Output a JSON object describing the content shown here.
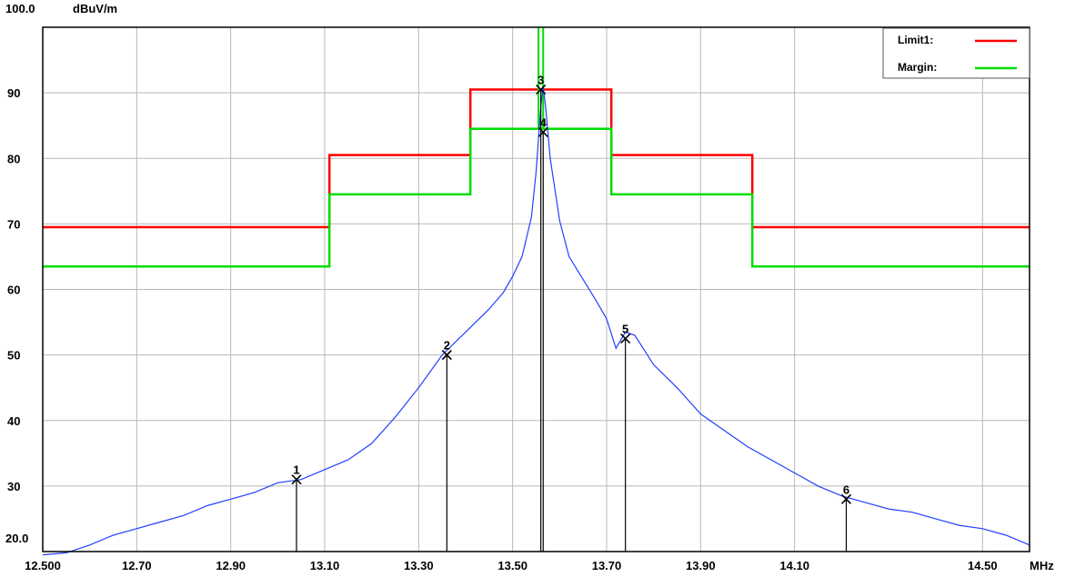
{
  "chart_data": {
    "type": "line",
    "ylabel": "dBuV/m",
    "xlabel": "MHz",
    "ylim": [
      20,
      100
    ],
    "xlim": [
      12.5,
      14.6
    ],
    "y_top_label": "100.0",
    "y_bottom_label": "20.0",
    "y_ticks": [
      30,
      40,
      50,
      60,
      70,
      80,
      90
    ],
    "x_ticks": [
      {
        "value": 12.5,
        "label": "12.500"
      },
      {
        "value": 12.7,
        "label": "12.70"
      },
      {
        "value": 12.9,
        "label": "12.90"
      },
      {
        "value": 13.1,
        "label": "13.10"
      },
      {
        "value": 13.3,
        "label": "13.30"
      },
      {
        "value": 13.5,
        "label": "13.50"
      },
      {
        "value": 13.7,
        "label": "13.70"
      },
      {
        "value": 13.9,
        "label": "13.90"
      },
      {
        "value": 14.1,
        "label": "14.10"
      },
      {
        "value": 14.5,
        "label": "14.50"
      }
    ],
    "grid": true,
    "legend_position": "top-right",
    "legend": [
      {
        "label": "Limit1:",
        "color": "#ff0000"
      },
      {
        "label": "Margin:",
        "color": "#00dd00"
      }
    ],
    "limit": {
      "color": "#ff0000",
      "segments": [
        {
          "x0": 12.5,
          "x1": 13.11,
          "y": 69.5
        },
        {
          "x0": 13.11,
          "x1": 13.41,
          "y": 80.5
        },
        {
          "x0": 13.41,
          "x1": 13.71,
          "y": 90.5
        },
        {
          "x0": 13.71,
          "x1": 14.01,
          "y": 80.5
        },
        {
          "x0": 14.01,
          "x1": 14.6,
          "y": 69.5
        }
      ]
    },
    "margin": {
      "color": "#00dd00",
      "segments": [
        {
          "x0": 12.5,
          "x1": 13.11,
          "y": 63.5
        },
        {
          "x0": 13.11,
          "x1": 13.41,
          "y": 74.5
        },
        {
          "x0": 13.41,
          "x1": 13.71,
          "y": 84.5
        },
        {
          "x0": 13.71,
          "x1": 14.01,
          "y": 74.5
        },
        {
          "x0": 14.01,
          "x1": 14.6,
          "y": 63.5
        }
      ],
      "spikes": [
        13.555,
        13.565
      ]
    },
    "series": [
      {
        "color": "#2040ff",
        "x": [
          12.5,
          12.55,
          12.6,
          12.65,
          12.7,
          12.75,
          12.8,
          12.85,
          12.9,
          12.95,
          13.0,
          13.05,
          13.1,
          13.15,
          13.2,
          13.25,
          13.3,
          13.35,
          13.4,
          13.45,
          13.48,
          13.5,
          13.52,
          13.54,
          13.55,
          13.56,
          13.565,
          13.57,
          13.58,
          13.6,
          13.62,
          13.65,
          13.68,
          13.7,
          13.72,
          13.74,
          13.76,
          13.8,
          13.85,
          13.9,
          13.95,
          14.0,
          14.05,
          14.1,
          14.15,
          14.2,
          14.25,
          14.3,
          14.35,
          14.4,
          14.45,
          14.5,
          14.55,
          14.6
        ],
        "y": [
          19.5,
          19.8,
          21.0,
          22.5,
          23.5,
          24.5,
          25.5,
          27.0,
          28.0,
          29.0,
          30.5,
          31.0,
          32.5,
          34.0,
          36.5,
          40.5,
          45.0,
          50.0,
          53.5,
          57.0,
          59.5,
          62.0,
          65.0,
          71.0,
          78.0,
          88.0,
          91.0,
          88.0,
          80.0,
          70.5,
          65.0,
          61.5,
          58.0,
          55.5,
          51.0,
          53.5,
          53.0,
          48.5,
          45.0,
          41.0,
          38.5,
          36.0,
          34.0,
          32.0,
          30.0,
          28.5,
          27.5,
          26.5,
          26.0,
          25.0,
          24.0,
          23.5,
          22.5,
          21.0
        ]
      }
    ],
    "markers": [
      {
        "label": "1",
        "x": 13.04,
        "y": 31.0
      },
      {
        "label": "2",
        "x": 13.36,
        "y": 50.0
      },
      {
        "label": "3",
        "x": 13.56,
        "y": 90.5
      },
      {
        "label": "4",
        "x": 13.565,
        "y": 84.0
      },
      {
        "label": "5",
        "x": 13.74,
        "y": 52.5
      },
      {
        "label": "6",
        "x": 14.21,
        "y": 28.0
      }
    ]
  }
}
